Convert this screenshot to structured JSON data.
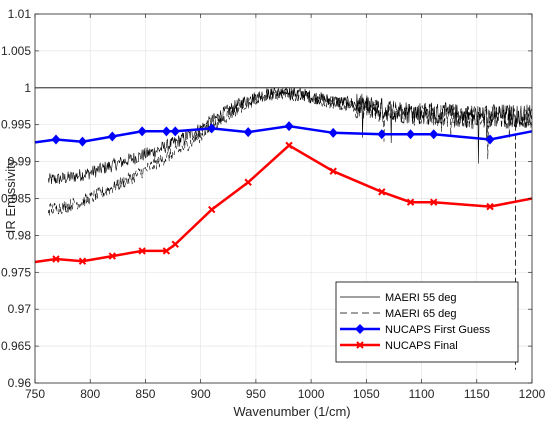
{
  "chart_data": {
    "type": "line",
    "xlabel": "Wavenumber (1/cm)",
    "ylabel": "IR Emissivity",
    "xlim": [
      750,
      1200
    ],
    "ylim": [
      0.96,
      1.01
    ],
    "x_ticks": [
      750,
      800,
      850,
      900,
      950,
      1000,
      1050,
      1100,
      1150,
      1200
    ],
    "y_ticks": [
      0.96,
      0.965,
      0.97,
      0.975,
      0.98,
      0.985,
      0.99,
      0.995,
      1,
      1.005,
      1.01
    ],
    "x_tick_labels": [
      "750",
      "800",
      "850",
      "900",
      "950",
      "1000",
      "1050",
      "1100",
      "1150",
      "1200"
    ],
    "y_tick_labels": [
      "0.96",
      "0.965",
      "0.97",
      "0.975",
      "0.98",
      "0.985",
      "0.99",
      "0.995",
      "1",
      "1.005",
      "1.01"
    ],
    "grid": true,
    "legend_position": "bottom-right",
    "reference_line": {
      "y": 1,
      "color": "#000000"
    },
    "series": [
      {
        "name": "MAERI 55 deg",
        "style": "solid-noisy",
        "color": "#000000",
        "noise": 0.0009,
        "x": [
          762,
          780,
          800,
          820,
          840,
          860,
          880,
          900,
          920,
          940,
          960,
          975,
          990,
          1000,
          1020,
          1040,
          1060,
          1080,
          1100,
          1120,
          1140,
          1160,
          1180,
          1200
        ],
        "y": [
          0.9875,
          0.9878,
          0.9885,
          0.9895,
          0.9905,
          0.9915,
          0.9928,
          0.9945,
          0.9965,
          0.9982,
          0.9992,
          0.9995,
          0.9992,
          0.9988,
          0.9982,
          0.9978,
          0.9972,
          0.9968,
          0.9966,
          0.9964,
          0.9962,
          0.9962,
          0.9962,
          0.9962
        ]
      },
      {
        "name": "MAERI 65 deg",
        "style": "dashed-noisy",
        "color": "#000000",
        "noise": 0.0009,
        "x": [
          762,
          780,
          800,
          820,
          840,
          860,
          880,
          900,
          920,
          940,
          960,
          975,
          990,
          1000,
          1020,
          1040,
          1060,
          1080,
          1100,
          1120,
          1140,
          1160,
          1180,
          1200
        ],
        "y": [
          0.9835,
          0.984,
          0.985,
          0.9865,
          0.988,
          0.9898,
          0.9915,
          0.9935,
          0.9958,
          0.9978,
          0.999,
          0.9993,
          0.999,
          0.9986,
          0.998,
          0.9975,
          0.997,
          0.9966,
          0.9964,
          0.9962,
          0.996,
          0.996,
          0.996,
          0.996
        ],
        "spike": {
          "x": 1185,
          "y_min": 0.9618
        }
      },
      {
        "name": "NUCAPS First Guess",
        "color": "#0000ff",
        "marker": "diamond",
        "x": [
          750,
          769,
          793,
          820,
          847,
          869,
          877,
          910,
          943,
          980,
          1020,
          1064,
          1090,
          1111,
          1162,
          1200
        ],
        "y": [
          0.9926,
          0.993,
          0.9927,
          0.9934,
          0.9941,
          0.9941,
          0.9941,
          0.9945,
          0.994,
          0.9948,
          0.9939,
          0.9937,
          0.9937,
          0.9937,
          0.993,
          0.9941
        ],
        "markers_at": [
          769,
          793,
          820,
          847,
          869,
          877,
          910,
          943,
          980,
          1020,
          1064,
          1090,
          1111,
          1162
        ]
      },
      {
        "name": "NUCAPS Final",
        "color": "#ff0000",
        "marker": "x",
        "x": [
          750,
          769,
          793,
          820,
          847,
          869,
          877,
          910,
          943,
          980,
          1020,
          1064,
          1090,
          1111,
          1162,
          1200
        ],
        "y": [
          0.9764,
          0.9768,
          0.9765,
          0.9772,
          0.9779,
          0.9779,
          0.9788,
          0.9835,
          0.9872,
          0.9922,
          0.9887,
          0.9859,
          0.9845,
          0.9845,
          0.9839,
          0.985
        ],
        "markers_at": [
          769,
          793,
          820,
          847,
          869,
          877,
          910,
          943,
          980,
          1020,
          1064,
          1090,
          1111,
          1162
        ]
      }
    ]
  }
}
